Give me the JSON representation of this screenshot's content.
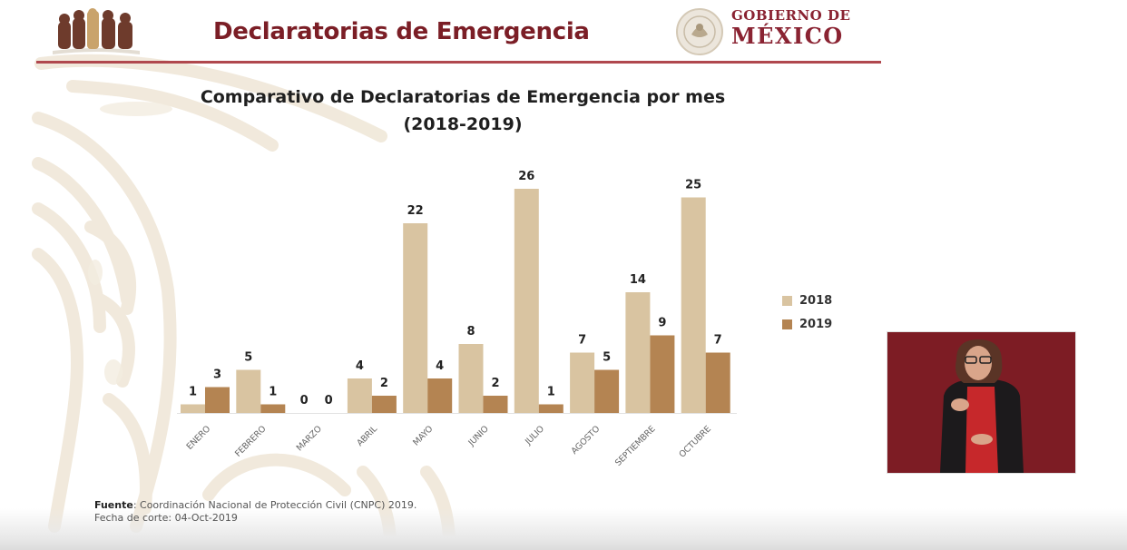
{
  "header": {
    "title": "Declaratorias de Emergencia",
    "gov_line1": "GOBIERNO DE",
    "gov_line2": "MÉXICO",
    "logo_icon": "historic-figures-logo-icon",
    "seal_icon": "national-seal-icon"
  },
  "colors": {
    "brand": "#7b1e26",
    "rule": "#b0484e",
    "series_2018": "#d9c4a1",
    "series_2019": "#b48452",
    "interpreter_bg": "#7d1c24"
  },
  "chart_data": {
    "type": "bar",
    "title": "Comparativo de Declaratorias de Emergencia por mes",
    "subtitle": "(2018-2019)",
    "xlabel": "",
    "ylabel": "",
    "categories": [
      "ENERO",
      "FEBRERO",
      "MARZO",
      "ABRIL",
      "MAYO",
      "JUNIO",
      "JULIO",
      "AGOSTO",
      "SEPTIEMBRE",
      "OCTUBRE"
    ],
    "series": [
      {
        "name": "2018",
        "values": [
          1,
          5,
          0,
          4,
          22,
          8,
          26,
          7,
          14,
          25
        ]
      },
      {
        "name": "2019",
        "values": [
          3,
          1,
          0,
          2,
          4,
          2,
          1,
          5,
          9,
          7
        ]
      }
    ],
    "ylim": [
      0,
      26
    ],
    "grid": false,
    "data_labels": true,
    "legend_position": "right"
  },
  "footer": {
    "source_label": "Fuente",
    "source_text": ": Coordinación Nacional de Protección Civil (CNPC) 2019.",
    "cutoff_text": "Fecha de corte: 04-Oct-2019"
  },
  "interpreter": {
    "description": "sign-language-interpreter-video"
  }
}
